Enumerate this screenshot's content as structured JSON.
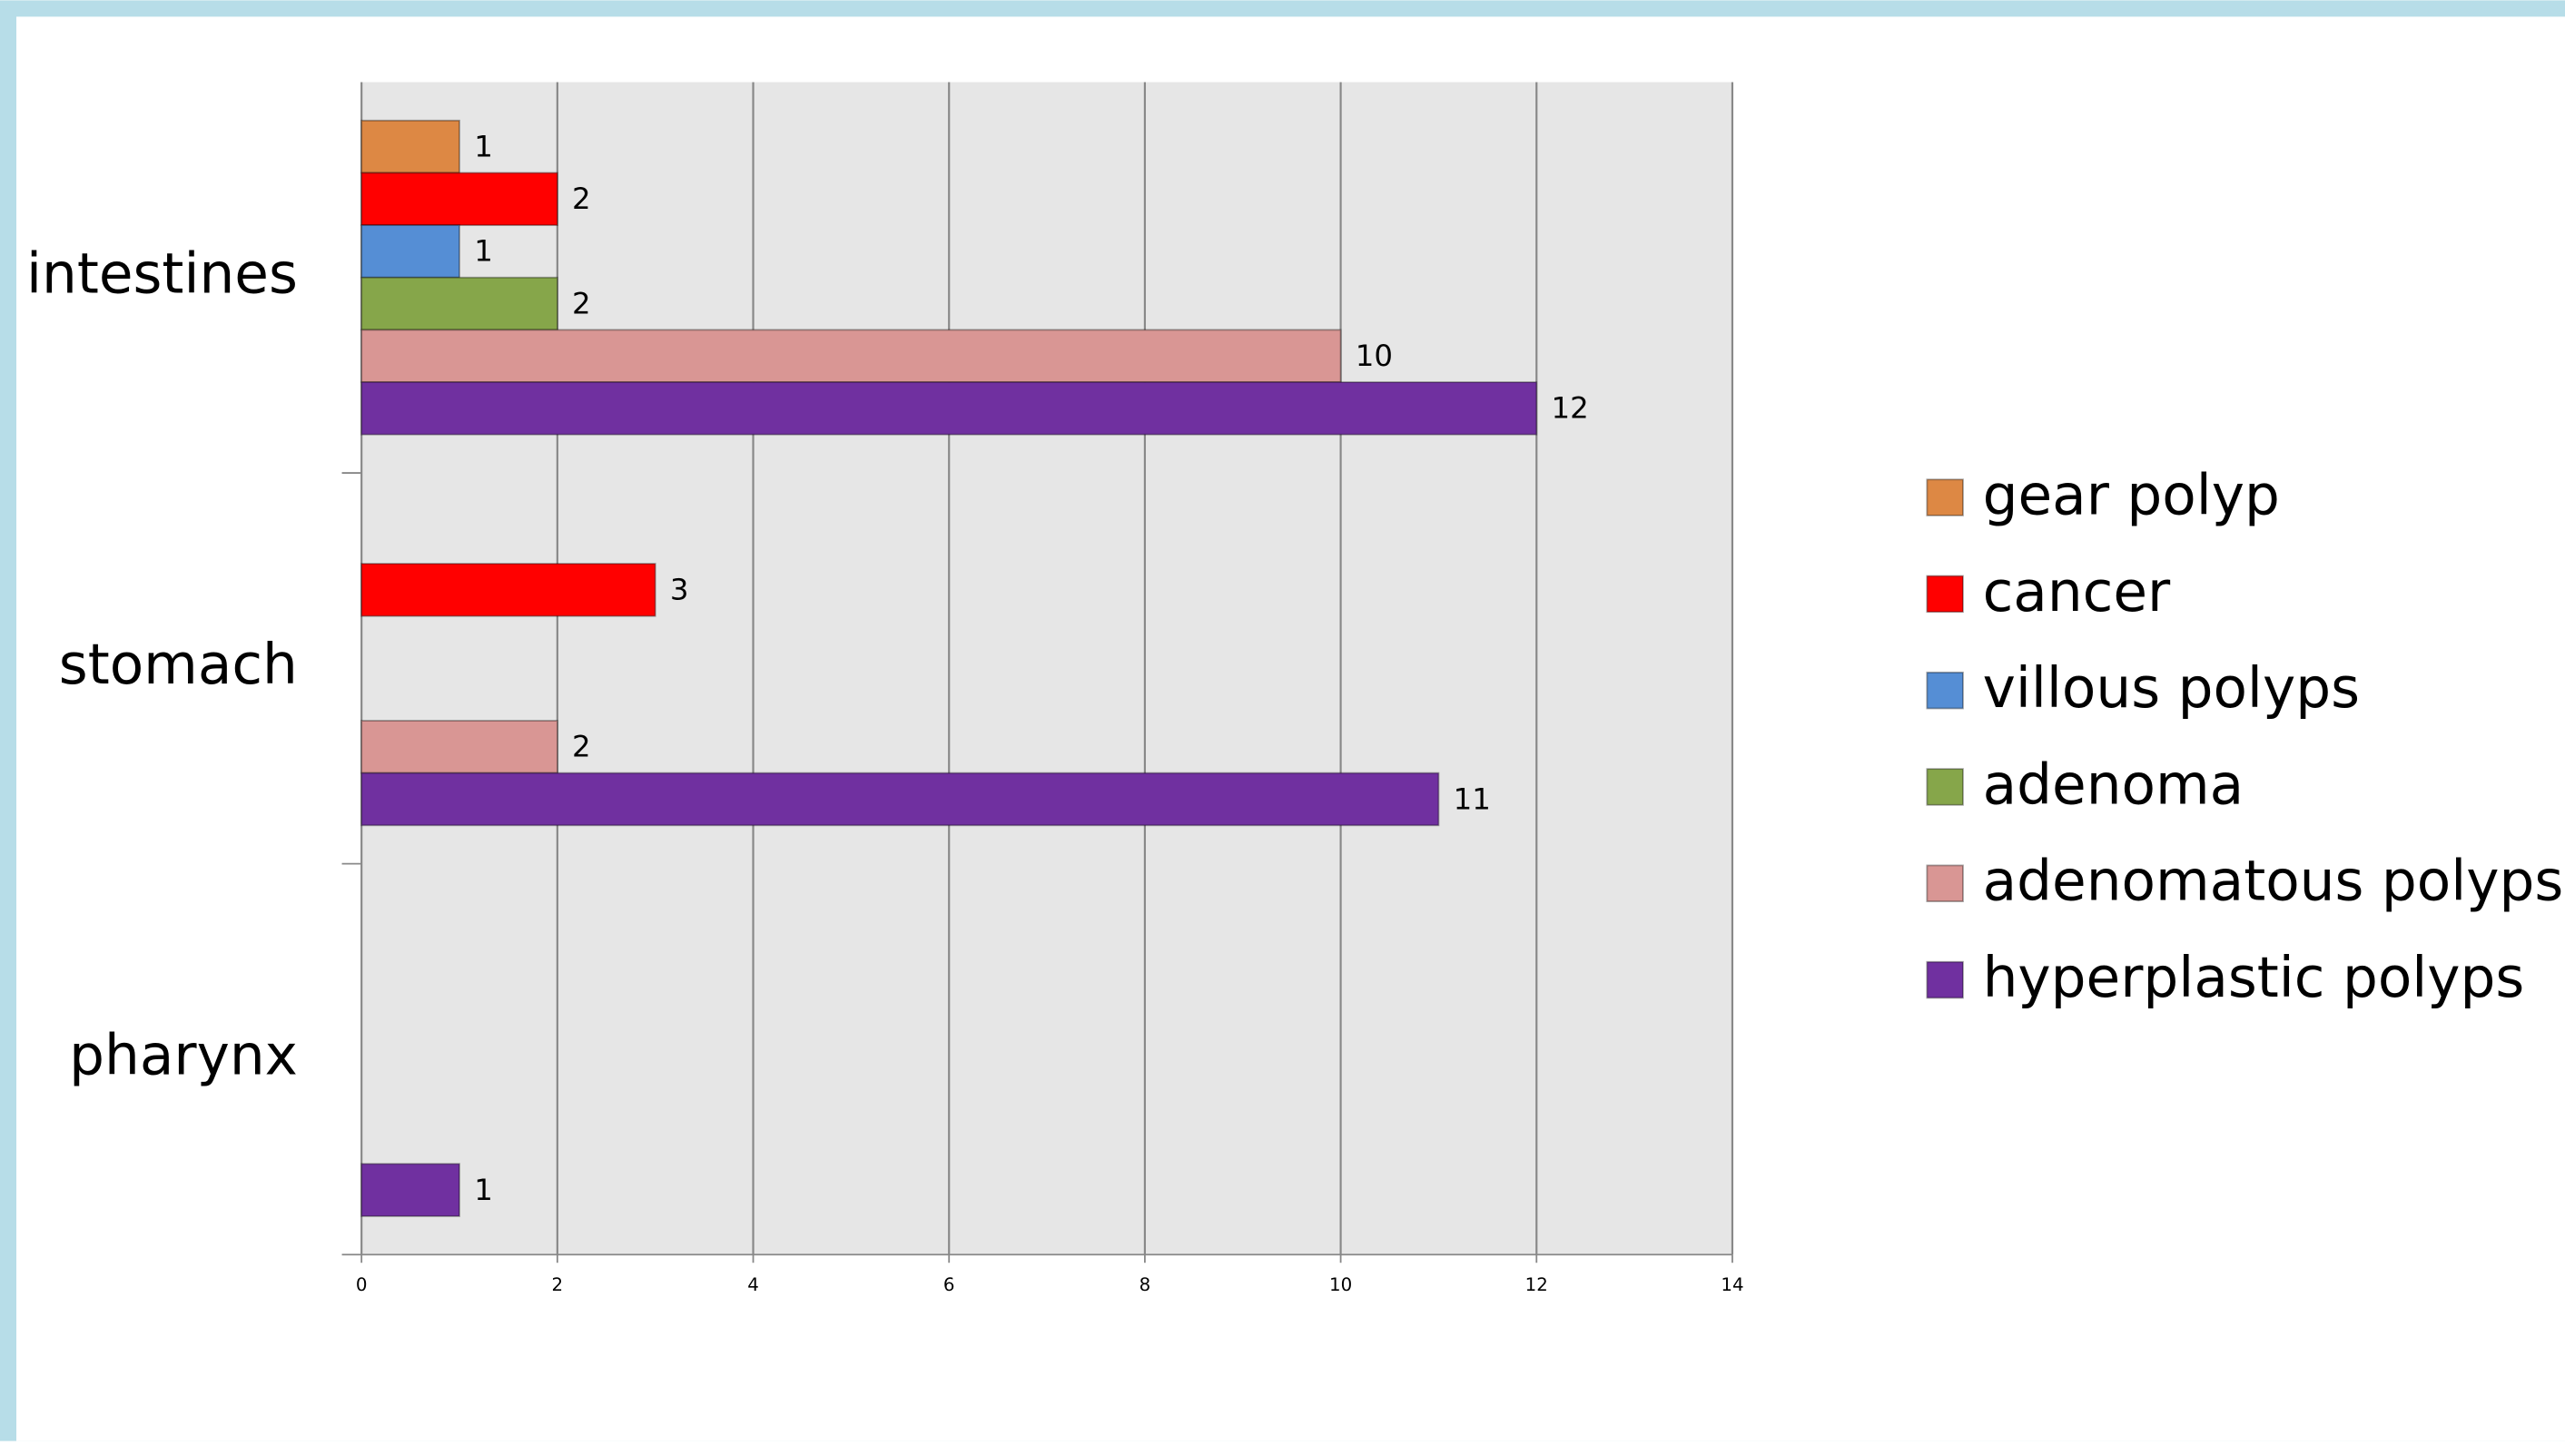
{
  "chart_data": {
    "type": "bar",
    "orientation": "horizontal",
    "categories": [
      "intestines",
      "stomach",
      "pharynx"
    ],
    "series": [
      {
        "name": "gear polyp",
        "color": "#dd8844",
        "values": [
          1,
          null,
          null
        ]
      },
      {
        "name": "cancer",
        "color": "#ff0000",
        "values": [
          2,
          3,
          null
        ]
      },
      {
        "name": "villous polyps",
        "color": "#558ed5",
        "values": [
          1,
          null,
          null
        ]
      },
      {
        "name": "adenoma",
        "color": "#86a64a",
        "values": [
          2,
          null,
          null
        ]
      },
      {
        "name": "adenomatous polyps",
        "color": "#d99694",
        "values": [
          10,
          2,
          null
        ]
      },
      {
        "name": "hyperplastic polyps",
        "color": "#7030a0",
        "values": [
          12,
          11,
          1
        ]
      }
    ],
    "xlim": [
      0,
      14
    ],
    "xticks": [
      0,
      2,
      4,
      6,
      8,
      10,
      12,
      14
    ],
    "grid": true,
    "legend": "right"
  }
}
